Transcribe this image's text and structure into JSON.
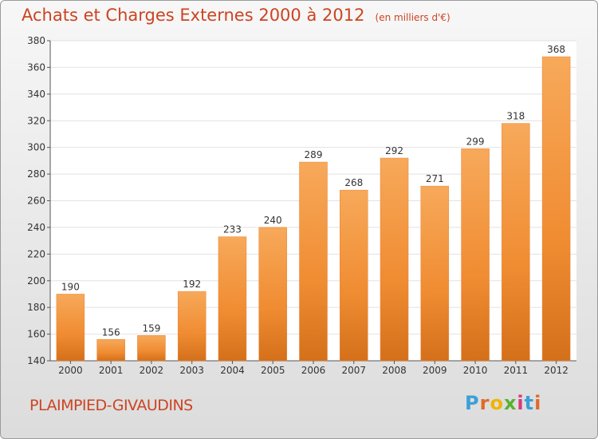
{
  "title": "Achats et Charges Externes 2000 à 2012",
  "unit": "(en milliers d'€)",
  "place": "PLAIMPIED-GIVAUDINS",
  "brand": {
    "letters": [
      "P",
      "r",
      "o",
      "x",
      "i",
      "t",
      "i"
    ],
    "colors": [
      "#3aa0d8",
      "#e06a2a",
      "#f0b400",
      "#5ab030",
      "#d83a7a",
      "#3aa0d8",
      "#e06a2a"
    ]
  },
  "colors": {
    "bar": "#f08c32",
    "bar_light": "#f7a95a",
    "bar_dark": "#d4701a",
    "title": "#cc4422"
  },
  "chart_data": {
    "type": "bar",
    "categories": [
      "2000",
      "2001",
      "2002",
      "2003",
      "2004",
      "2005",
      "2006",
      "2007",
      "2008",
      "2009",
      "2010",
      "2011",
      "2012"
    ],
    "values": [
      190,
      156,
      159,
      192,
      233,
      240,
      289,
      268,
      292,
      271,
      299,
      318,
      368
    ],
    "ylim": [
      140,
      380
    ],
    "yticks": [
      140,
      160,
      180,
      200,
      220,
      240,
      260,
      280,
      300,
      320,
      340,
      360,
      380
    ],
    "grid": true
  }
}
